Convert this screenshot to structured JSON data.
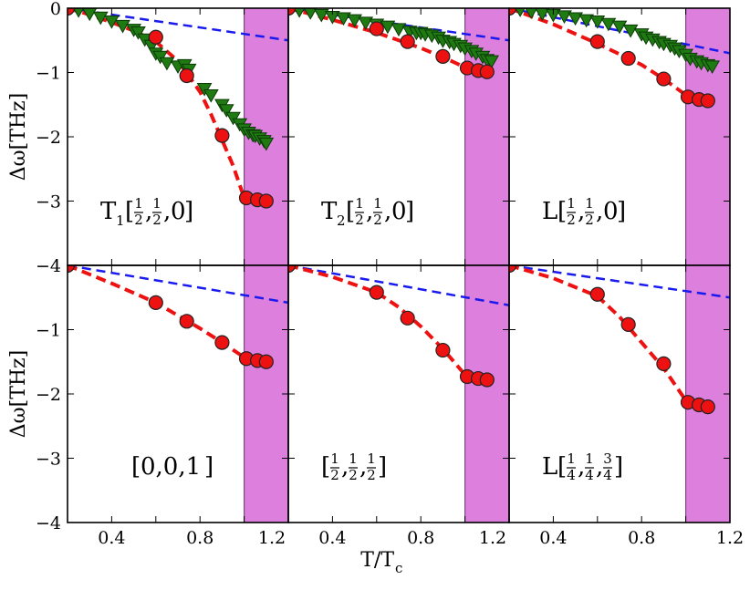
{
  "chart_data": {
    "type": "scatter",
    "xlabel": "T/T",
    "xlabel_sub": "c",
    "ylabel": "Δω[THz]",
    "xlim": [
      0.2,
      1.2
    ],
    "ylim": [
      -4,
      0
    ],
    "xticks": [
      "0.4",
      "0.8",
      "1.2"
    ],
    "yticks_top": [
      "0",
      "−1",
      "−2",
      "−3"
    ],
    "yticks_bottom": [
      "−4",
      "−1",
      "−2",
      "−3",
      "−4"
    ],
    "shaded_region": {
      "x": [
        1.0,
        1.2
      ],
      "color": "#dd80dd"
    },
    "colors": {
      "circles": "#ee1111",
      "triangles": "#1f7a12",
      "fit_curve": "#ee1111",
      "linear": "#1a1aee"
    },
    "panels": [
      {
        "label": "T1[1/2,1/2,0]",
        "label_parts": {
          "prefix": "T",
          "sub": "1",
          "open": "[",
          "n": [
            "1",
            "1",
            "0"
          ],
          "d": [
            "2",
            "2",
            ""
          ],
          "close": "]"
        },
        "circles": {
          "x": [
            0.2,
            0.6,
            0.74,
            0.9,
            1.01,
            1.06,
            1.1
          ],
          "y": [
            0.0,
            -0.45,
            -1.05,
            -1.98,
            -2.95,
            -2.98,
            -3.0
          ]
        },
        "triangles": {
          "x": [
            0.2,
            0.25,
            0.3,
            0.35,
            0.4,
            0.45,
            0.5,
            0.52,
            0.55,
            0.58,
            0.6,
            0.62,
            0.65,
            0.7,
            0.73,
            0.75,
            0.82,
            0.85,
            0.9,
            0.92,
            0.95,
            0.98,
            1.0,
            1.02,
            1.04,
            1.05,
            1.07,
            1.09,
            1.1
          ],
          "y": [
            0.0,
            -0.03,
            -0.08,
            -0.14,
            -0.2,
            -0.27,
            -0.33,
            -0.37,
            -0.48,
            -0.58,
            -0.7,
            -0.75,
            -0.85,
            -0.9,
            -0.88,
            -0.95,
            -1.25,
            -1.35,
            -1.5,
            -1.58,
            -1.7,
            -1.8,
            -1.88,
            -1.93,
            -1.97,
            -1.98,
            -2.02,
            -2.06,
            -2.1
          ]
        },
        "fit": {
          "x": [
            0.2,
            0.3,
            0.4,
            0.5,
            0.6,
            0.7,
            0.8,
            0.85,
            0.9,
            0.95,
            0.98,
            1.0
          ],
          "y": [
            0.0,
            -0.1,
            -0.22,
            -0.35,
            -0.52,
            -0.82,
            -1.3,
            -1.65,
            -2.05,
            -2.45,
            -2.75,
            -2.95
          ]
        },
        "linear": {
          "x": [
            0.2,
            1.2
          ],
          "y": [
            0.0,
            -0.5
          ]
        }
      },
      {
        "label": "T2[1/2,1/2,0]",
        "label_parts": {
          "prefix": "T",
          "sub": "2",
          "open": "[",
          "n": [
            "1",
            "1",
            "0"
          ],
          "d": [
            "2",
            "2",
            ""
          ],
          "close": "]"
        },
        "circles": {
          "x": [
            0.2,
            0.6,
            0.74,
            0.9,
            1.01,
            1.06,
            1.1
          ],
          "y": [
            0.0,
            -0.32,
            -0.52,
            -0.75,
            -0.93,
            -0.97,
            -0.99
          ]
        },
        "triangles": {
          "x": [
            0.2,
            0.25,
            0.3,
            0.35,
            0.4,
            0.45,
            0.5,
            0.55,
            0.6,
            0.65,
            0.7,
            0.75,
            0.78,
            0.8,
            0.82,
            0.85,
            0.88,
            0.9,
            0.93,
            0.95,
            0.98,
            1.0,
            1.03,
            1.05,
            1.08,
            1.1,
            1.12
          ],
          "y": [
            0.0,
            -0.03,
            -0.06,
            -0.1,
            -0.13,
            -0.15,
            -0.18,
            -0.22,
            -0.25,
            -0.28,
            -0.32,
            -0.36,
            -0.38,
            -0.38,
            -0.4,
            -0.42,
            -0.45,
            -0.5,
            -0.52,
            -0.55,
            -0.58,
            -0.62,
            -0.66,
            -0.7,
            -0.75,
            -0.8,
            -0.82
          ]
        },
        "fit": {
          "x": [
            0.2,
            0.4,
            0.6,
            0.8,
            0.9,
            1.0
          ],
          "y": [
            0.0,
            -0.18,
            -0.38,
            -0.62,
            -0.76,
            -0.92
          ]
        },
        "linear": {
          "x": [
            0.2,
            1.2
          ],
          "y": [
            0.0,
            -0.5
          ]
        }
      },
      {
        "label": "L[1/2,1/2,0]",
        "label_parts": {
          "prefix": "L",
          "sub": "",
          "open": "[",
          "n": [
            "1",
            "1",
            "0"
          ],
          "d": [
            "2",
            "2",
            ""
          ],
          "close": "]"
        },
        "circles": {
          "x": [
            0.2,
            0.6,
            0.74,
            0.9,
            1.01,
            1.06,
            1.1
          ],
          "y": [
            0.0,
            -0.52,
            -0.78,
            -1.1,
            -1.38,
            -1.42,
            -1.44
          ]
        },
        "triangles": {
          "x": [
            0.2,
            0.25,
            0.3,
            0.35,
            0.4,
            0.45,
            0.5,
            0.55,
            0.6,
            0.65,
            0.7,
            0.75,
            0.8,
            0.82,
            0.85,
            0.88,
            0.9,
            0.93,
            0.95,
            0.97,
            1.0,
            1.02,
            1.05,
            1.07,
            1.1,
            1.12
          ],
          "y": [
            0.0,
            -0.02,
            -0.05,
            -0.08,
            -0.1,
            -0.12,
            -0.15,
            -0.18,
            -0.2,
            -0.24,
            -0.28,
            -0.34,
            -0.4,
            -0.45,
            -0.48,
            -0.52,
            -0.55,
            -0.58,
            -0.62,
            -0.66,
            -0.72,
            -0.78,
            -0.82,
            -0.85,
            -0.88,
            -0.9
          ]
        },
        "fit": {
          "x": [
            0.2,
            0.4,
            0.6,
            0.8,
            0.9,
            1.0,
            1.1
          ],
          "y": [
            0.0,
            -0.25,
            -0.55,
            -0.88,
            -1.1,
            -1.35,
            -1.42
          ]
        },
        "linear": {
          "x": [
            0.2,
            1.2
          ],
          "y": [
            0.0,
            -0.7
          ]
        }
      },
      {
        "label": "[0,0,1]",
        "label_parts": {
          "prefix": "",
          "sub": "",
          "open": "[",
          "plain": "0,0,1",
          "close": "]"
        },
        "circles": {
          "x": [
            0.2,
            0.6,
            0.74,
            0.9,
            1.01,
            1.06,
            1.1
          ],
          "y": [
            0.0,
            -0.58,
            -0.87,
            -1.2,
            -1.45,
            -1.48,
            -1.5
          ]
        },
        "triangles": {
          "x": [],
          "y": []
        },
        "fit": {
          "x": [
            0.2,
            0.4,
            0.6,
            0.8,
            0.9,
            1.0
          ],
          "y": [
            0.0,
            -0.28,
            -0.58,
            -0.98,
            -1.2,
            -1.43
          ]
        },
        "linear": {
          "x": [
            0.2,
            1.2
          ],
          "y": [
            0.0,
            -0.58
          ]
        }
      },
      {
        "label": "[1/2,1/2,1/2]",
        "label_parts": {
          "prefix": "",
          "sub": "",
          "open": "[",
          "n": [
            "1",
            "1",
            "1"
          ],
          "d": [
            "2",
            "2",
            "2"
          ],
          "close": "]"
        },
        "circles": {
          "x": [
            0.2,
            0.6,
            0.74,
            0.9,
            1.01,
            1.06,
            1.1
          ],
          "y": [
            0.0,
            -0.42,
            -0.82,
            -1.32,
            -1.73,
            -1.76,
            -1.78
          ]
        },
        "triangles": {
          "x": [],
          "y": []
        },
        "fit": {
          "x": [
            0.2,
            0.4,
            0.6,
            0.7,
            0.8,
            0.9,
            1.0
          ],
          "y": [
            0.0,
            -0.18,
            -0.42,
            -0.65,
            -0.95,
            -1.3,
            -1.7
          ]
        },
        "linear": {
          "x": [
            0.2,
            1.2
          ],
          "y": [
            0.0,
            -0.62
          ]
        }
      },
      {
        "label": "L[1/4,1/4,3/4]",
        "label_parts": {
          "prefix": "L",
          "sub": "",
          "open": "[",
          "n": [
            "1",
            "1",
            "3"
          ],
          "d": [
            "4",
            "4",
            "4"
          ],
          "close": "]"
        },
        "circles": {
          "x": [
            0.2,
            0.6,
            0.74,
            0.9,
            1.01,
            1.06,
            1.1
          ],
          "y": [
            0.0,
            -0.45,
            -0.92,
            -1.53,
            -2.13,
            -2.17,
            -2.2
          ]
        },
        "triangles": {
          "x": [],
          "y": []
        },
        "fit": {
          "x": [
            0.2,
            0.4,
            0.6,
            0.7,
            0.8,
            0.9,
            1.0
          ],
          "y": [
            0.0,
            -0.2,
            -0.48,
            -0.8,
            -1.2,
            -1.6,
            -2.1
          ]
        },
        "linear": {
          "x": [
            0.2,
            1.2
          ],
          "y": [
            0.0,
            -0.5
          ]
        }
      }
    ]
  }
}
